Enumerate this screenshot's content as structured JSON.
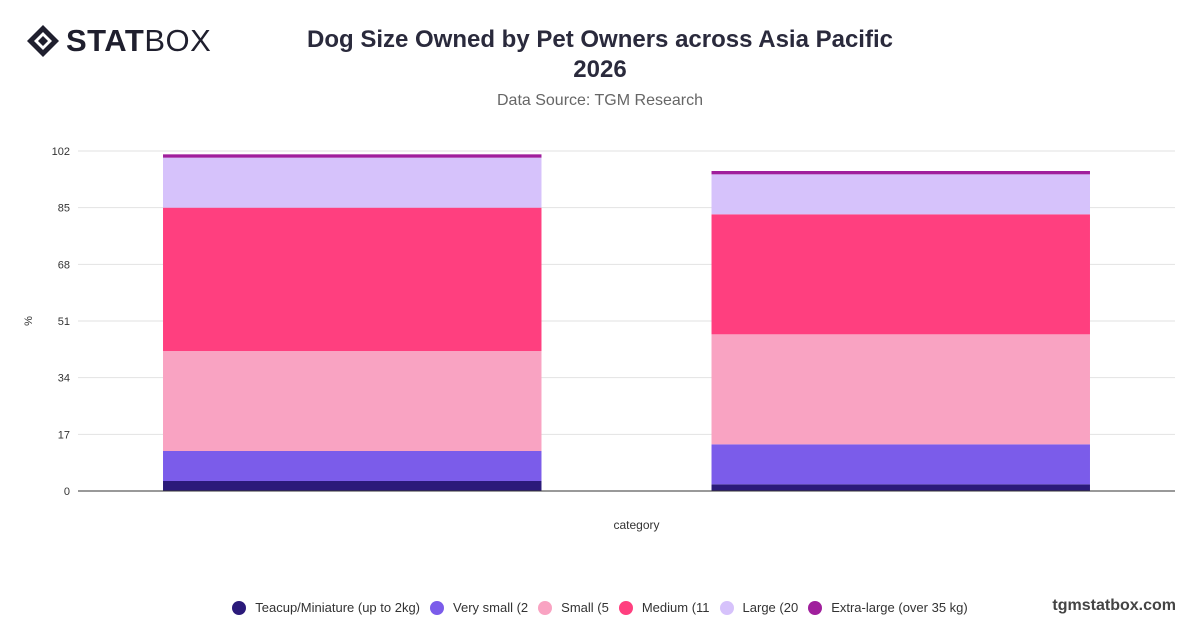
{
  "brand": {
    "logo_bold": "STAT",
    "logo_light": "BOX",
    "watermark": "tgmstatbox.com"
  },
  "header": {
    "title_line1": "Dog Size Owned by Pet Owners across Asia Pacific",
    "title_line2": "2026",
    "subtitle": "Data Source: TGM Research"
  },
  "chart_data": {
    "type": "bar",
    "stacked": true,
    "title": "Dog Size Owned by Pet Owners across Asia Pacific 2026",
    "subtitle": "Data Source: TGM Research",
    "xlabel": "category",
    "ylabel": "%",
    "ylim": [
      0,
      102
    ],
    "yticks": [
      0,
      17,
      34,
      51,
      68,
      85,
      102
    ],
    "grid": true,
    "legend_position": "bottom",
    "categories": [
      "",
      ""
    ],
    "series": [
      {
        "name": "Teacup/Miniature (up to 2kg)",
        "color": "#2b1a7a",
        "values": [
          3,
          2
        ]
      },
      {
        "name": "Very small (2",
        "color": "#7b5cea",
        "values": [
          9,
          12
        ]
      },
      {
        "name": "Small (5",
        "color": "#f9a3c2",
        "values": [
          30,
          33
        ]
      },
      {
        "name": "Medium (11",
        "color": "#ff3f7f",
        "values": [
          43,
          36
        ]
      },
      {
        "name": "Large (20",
        "color": "#d6c2fb",
        "values": [
          15,
          12
        ]
      },
      {
        "name": "Extra-large (over 35 kg)",
        "color": "#a01f9c",
        "values": [
          1,
          1
        ]
      }
    ]
  }
}
